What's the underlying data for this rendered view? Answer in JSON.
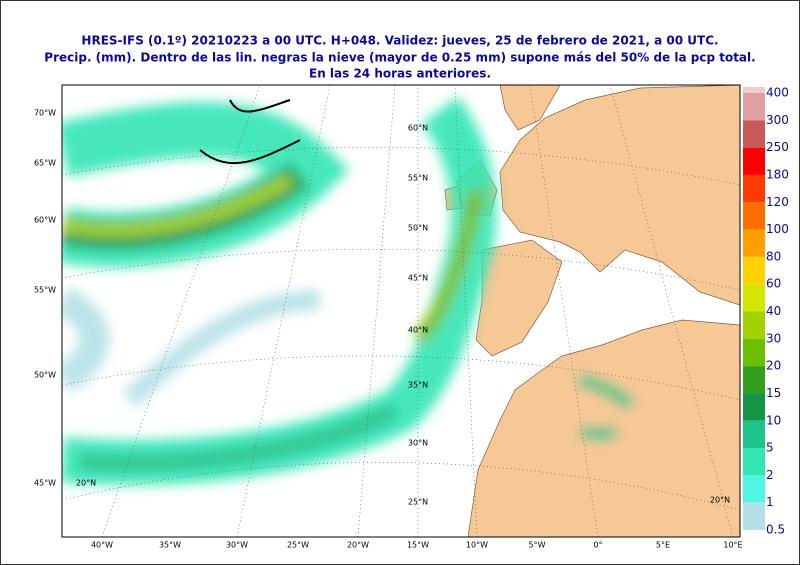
{
  "header": {
    "lines": [
      "HRES-IFS (0.1º) 20210223 a 00 UTC.  H+048. Validez: jueves, 25 de febrero de 2021,  a  00 UTC.",
      "Precip. (mm). Dentro de las lin. negras la nieve (mayor de 0.25 mm) supone más del 50% de la pcp total.",
      "En las 24 horas anteriores."
    ]
  },
  "map": {
    "left_labels": [
      "70°W",
      "65°W",
      "60°W",
      "55°W",
      "50°W",
      "45°W"
    ],
    "bottom_labels": [
      "40°W",
      "35°W",
      "30°W",
      "25°W",
      "20°W",
      "15°W",
      "10°W",
      "5°W",
      "0°",
      "5°E",
      "10°E"
    ],
    "lat_labels": [
      "60°N",
      "55°N",
      "50°N",
      "45°N",
      "40°N",
      "35°N",
      "30°N",
      "25°N",
      "20°N",
      "20°N"
    ]
  },
  "legend": {
    "entries": [
      {
        "label": "400",
        "color": "#f2cccc"
      },
      {
        "label": "300",
        "color": "#e0a0a0"
      },
      {
        "label": "250",
        "color": "#c85a5a"
      },
      {
        "label": "180",
        "color": "#ff0000"
      },
      {
        "label": "120",
        "color": "#ff3c00"
      },
      {
        "label": "100",
        "color": "#ff6e00"
      },
      {
        "label": "80",
        "color": "#ffa000"
      },
      {
        "label": "60",
        "color": "#ffd200"
      },
      {
        "label": "40",
        "color": "#d2e600"
      },
      {
        "label": "30",
        "color": "#a0d200"
      },
      {
        "label": "20",
        "color": "#6ebe00"
      },
      {
        "label": "15",
        "color": "#32a01e"
      },
      {
        "label": "10",
        "color": "#149646"
      },
      {
        "label": "5",
        "color": "#1ec38c"
      },
      {
        "label": "2",
        "color": "#32e6b4"
      },
      {
        "label": "1",
        "color": "#50f5e6"
      },
      {
        "label": "0.5",
        "color": "#b4e1e6"
      }
    ]
  }
}
